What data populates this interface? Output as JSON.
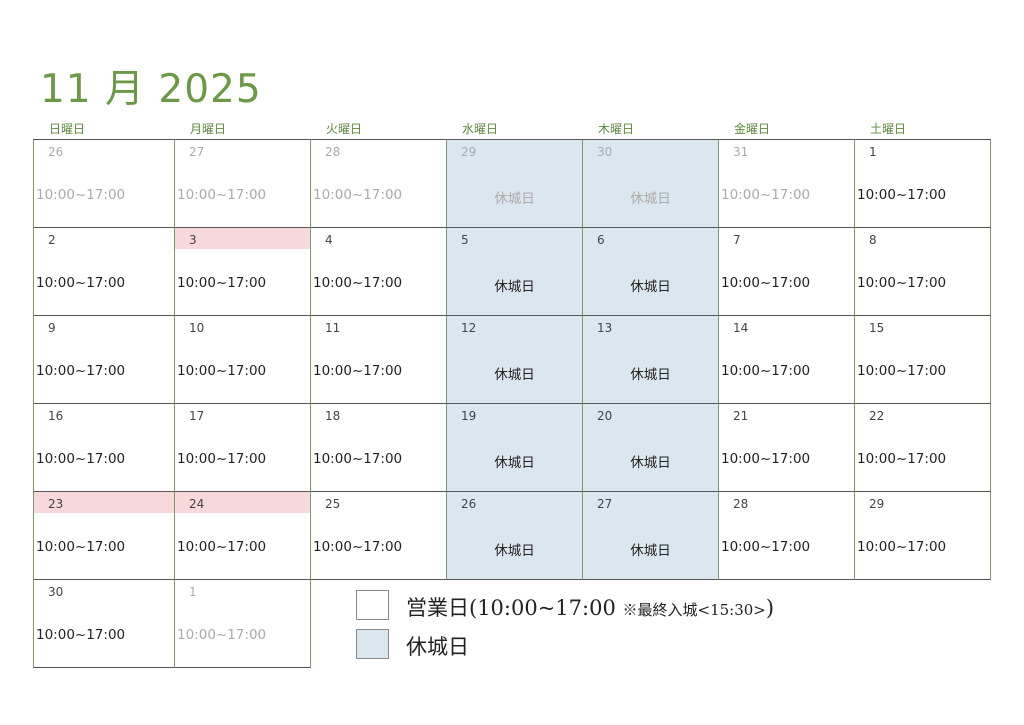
{
  "title": "11 月 2025",
  "weekdays": [
    "日曜日",
    "月曜日",
    "火曜日",
    "水曜日",
    "木曜日",
    "金曜日",
    "土曜日"
  ],
  "colors": {
    "accent": "#6a9a45",
    "closed": "#dbe7ef",
    "holiday": "#f8d9db"
  },
  "open_label": "10:00~17:00",
  "closed_label": "休城日",
  "weeks": [
    [
      {
        "d": "26",
        "m": 1
      },
      {
        "d": "27",
        "m": 1
      },
      {
        "d": "28",
        "m": 1
      },
      {
        "d": "29",
        "m": 1,
        "c": 1
      },
      {
        "d": "30",
        "m": 1,
        "c": 1
      },
      {
        "d": "31",
        "m": 1
      },
      {
        "d": "1"
      }
    ],
    [
      {
        "d": "2"
      },
      {
        "d": "3",
        "h": 1
      },
      {
        "d": "4"
      },
      {
        "d": "5",
        "c": 1
      },
      {
        "d": "6",
        "c": 1
      },
      {
        "d": "7"
      },
      {
        "d": "8"
      }
    ],
    [
      {
        "d": "9"
      },
      {
        "d": "10"
      },
      {
        "d": "11"
      },
      {
        "d": "12",
        "c": 1
      },
      {
        "d": "13",
        "c": 1
      },
      {
        "d": "14"
      },
      {
        "d": "15"
      }
    ],
    [
      {
        "d": "16"
      },
      {
        "d": "17"
      },
      {
        "d": "18"
      },
      {
        "d": "19",
        "c": 1
      },
      {
        "d": "20",
        "c": 1
      },
      {
        "d": "21"
      },
      {
        "d": "22"
      }
    ],
    [
      {
        "d": "23",
        "h": 1
      },
      {
        "d": "24",
        "h": 1
      },
      {
        "d": "25"
      },
      {
        "d": "26",
        "c": 1
      },
      {
        "d": "27",
        "c": 1
      },
      {
        "d": "28"
      },
      {
        "d": "29"
      }
    ],
    [
      {
        "d": "30"
      },
      {
        "d": "1",
        "m": 1
      }
    ]
  ],
  "legend": {
    "open_main": "営業日(10:00~17:00 ",
    "open_note": "※最終入城<15:30>",
    "open_close": ")",
    "closed": "休城日"
  }
}
